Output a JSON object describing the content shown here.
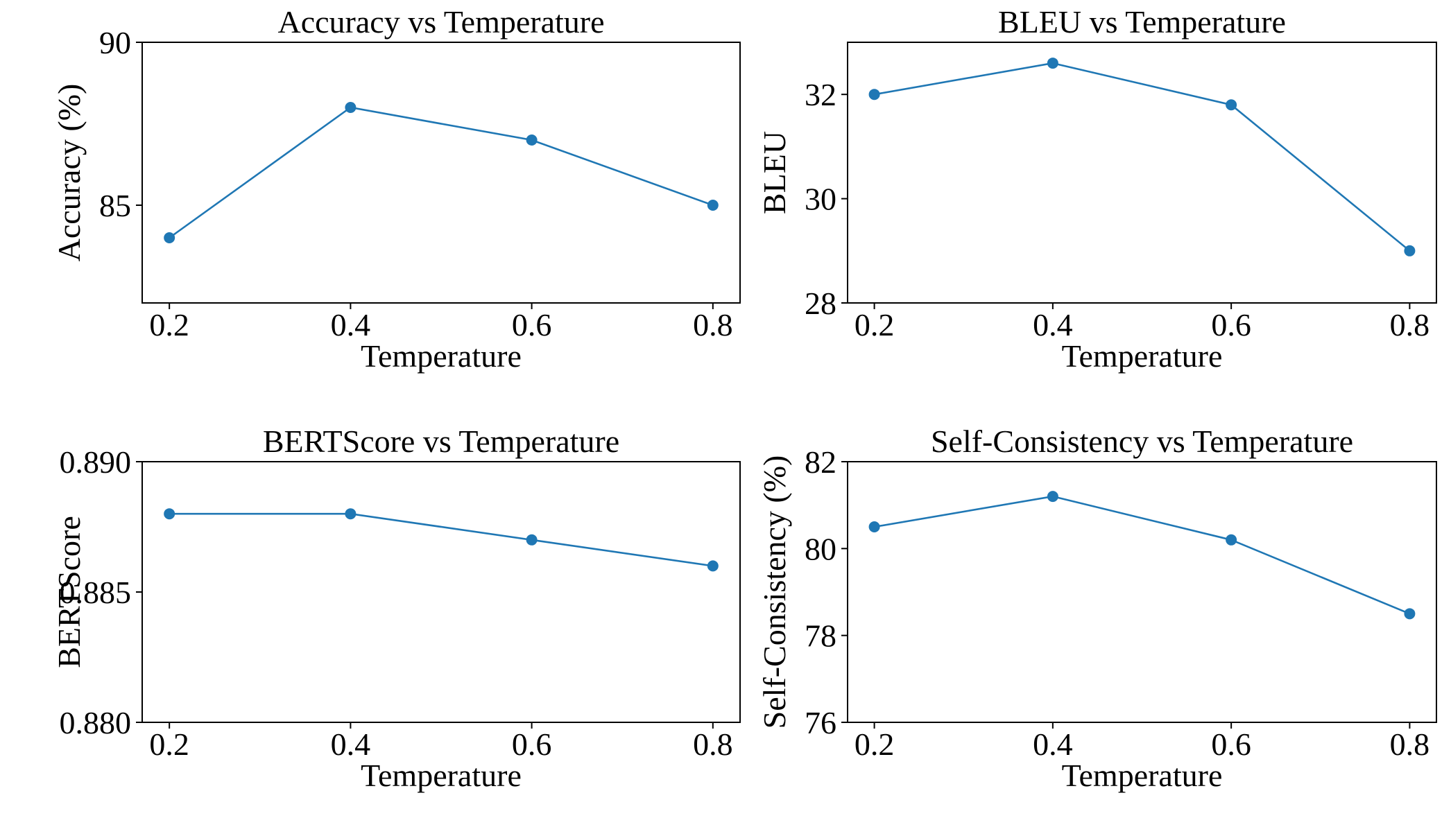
{
  "chart_data": [
    {
      "type": "line",
      "title": "Accuracy vs Temperature",
      "xlabel": "Temperature",
      "ylabel": "Accuracy (%)",
      "x": [
        0.2,
        0.4,
        0.6,
        0.8
      ],
      "xticks": [
        "0.2",
        "0.4",
        "0.6",
        "0.8"
      ],
      "xlim": [
        0.17,
        0.83
      ],
      "ylim": [
        82,
        90
      ],
      "yticks": [
        "85",
        "90"
      ],
      "ytick_values": [
        85,
        90
      ],
      "series": [
        {
          "values": [
            84,
            88,
            87,
            85
          ],
          "color": "#1f77b4"
        }
      ]
    },
    {
      "type": "line",
      "title": "BLEU vs Temperature",
      "xlabel": "Temperature",
      "ylabel": "BLEU",
      "x": [
        0.2,
        0.4,
        0.6,
        0.8
      ],
      "xticks": [
        "0.2",
        "0.4",
        "0.6",
        "0.8"
      ],
      "xlim": [
        0.17,
        0.83
      ],
      "ylim": [
        28,
        33
      ],
      "yticks": [
        "28",
        "30",
        "32"
      ],
      "ytick_values": [
        28,
        30,
        32
      ],
      "series": [
        {
          "values": [
            32.0,
            32.6,
            31.8,
            29.0
          ],
          "color": "#1f77b4"
        }
      ]
    },
    {
      "type": "line",
      "title": "BERTScore vs Temperature",
      "xlabel": "Temperature",
      "ylabel": "BERTScore",
      "x": [
        0.2,
        0.4,
        0.6,
        0.8
      ],
      "xticks": [
        "0.2",
        "0.4",
        "0.6",
        "0.8"
      ],
      "xlim": [
        0.17,
        0.83
      ],
      "ylim": [
        0.88,
        0.89
      ],
      "yticks": [
        "0.880",
        "0.885",
        "0.890"
      ],
      "ytick_values": [
        0.88,
        0.885,
        0.89
      ],
      "series": [
        {
          "values": [
            0.888,
            0.888,
            0.887,
            0.886
          ],
          "color": "#1f77b4"
        }
      ]
    },
    {
      "type": "line",
      "title": "Self-Consistency vs Temperature",
      "xlabel": "Temperature",
      "ylabel": "Self-Consistency (%)",
      "x": [
        0.2,
        0.4,
        0.6,
        0.8
      ],
      "xticks": [
        "0.2",
        "0.4",
        "0.6",
        "0.8"
      ],
      "xlim": [
        0.17,
        0.83
      ],
      "ylim": [
        76,
        82
      ],
      "yticks": [
        "76",
        "78",
        "80",
        "82"
      ],
      "ytick_values": [
        76,
        78,
        80,
        82
      ],
      "series": [
        {
          "values": [
            80.5,
            81.2,
            80.2,
            78.5
          ],
          "color": "#1f77b4"
        }
      ]
    }
  ]
}
